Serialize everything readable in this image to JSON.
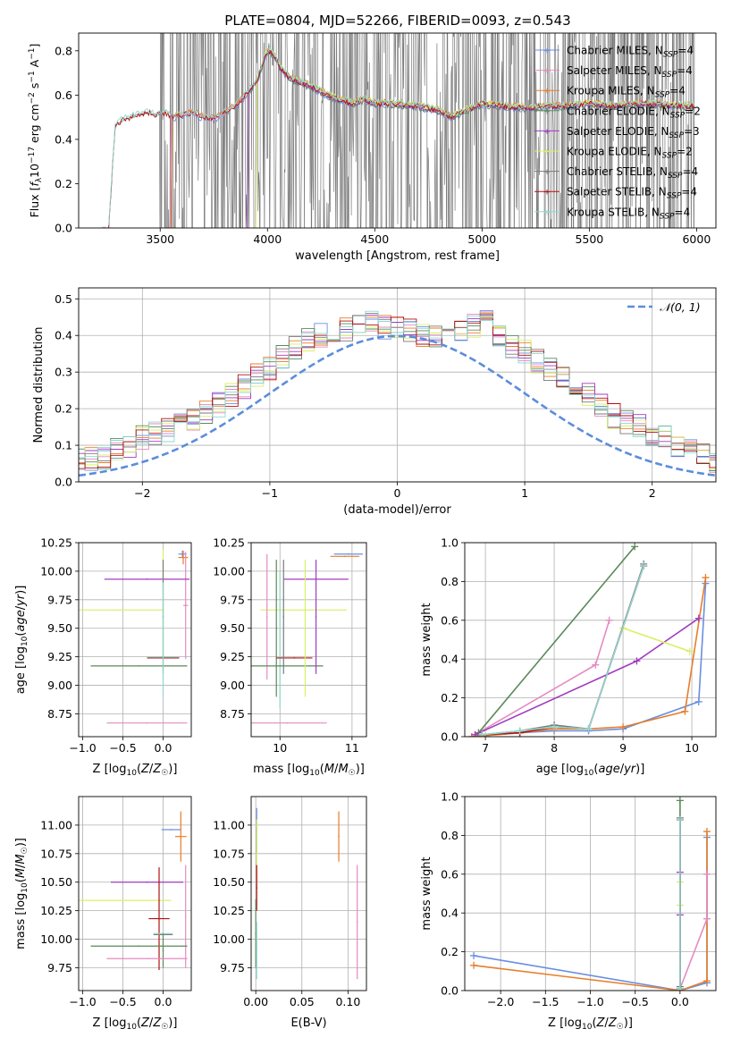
{
  "figure_title": "PLATE=0804, MJD=52266, FIBERID=0093, z=0.543",
  "colors": {
    "Chabrier MILES": "#6a8fe0",
    "Salpeter MILES": "#e58ac0",
    "Kroupa MILES": "#e87d2a",
    "Chabrier ELODIE": "#5a8a5a",
    "Salpeter ELODIE": "#a03bbf",
    "Kroupa ELODIE": "#d8f064",
    "Chabrier STELIB": "#7a7a7a",
    "Salpeter STELIB": "#b01010",
    "Kroupa STELIB": "#8ed8d0"
  },
  "chart_data": [
    {
      "id": "spectrum",
      "type": "line",
      "xlabel": "wavelength [Angstrom, rest frame]",
      "ylabel": "Flux [f_λ 10^-17 erg cm^-2 s^-1 A^-1]",
      "xlim": [
        3120,
        6090
      ],
      "ylim": [
        0,
        0.88
      ],
      "xticks": [
        3500,
        4000,
        4500,
        5000,
        5500,
        6000
      ],
      "yticks": [
        0.0,
        0.2,
        0.4,
        0.6,
        0.8
      ],
      "grid": false,
      "legend_position": "top-right",
      "legend": [
        {
          "model": "Chabrier MILES",
          "nssp": "4"
        },
        {
          "model": "Salpeter MILES",
          "nssp": "4"
        },
        {
          "model": "Kroupa MILES",
          "nssp": "4"
        },
        {
          "model": "Chabrier ELODIE",
          "nssp": "2"
        },
        {
          "model": "Salpeter ELODIE",
          "nssp": "3"
        },
        {
          "model": "Kroupa ELODIE",
          "nssp": "2"
        },
        {
          "model": "Chabrier STELIB",
          "nssp": "4"
        },
        {
          "model": "Salpeter STELIB",
          "nssp": "4"
        },
        {
          "model": "Kroupa STELIB",
          "nssp": "4"
        }
      ],
      "continuum": {
        "x": [
          3260,
          3290,
          3330,
          3400,
          3450,
          3480,
          3520,
          3560,
          3600,
          3650,
          3700,
          3750,
          3800,
          3850,
          3900,
          3950,
          3990,
          4010,
          4030,
          4060,
          4100,
          4150,
          4200,
          4300,
          4400,
          4450,
          4500,
          4600,
          4700,
          4800,
          4860,
          4900,
          5000,
          5100,
          5200,
          5300,
          5400,
          5500,
          5600,
          5700,
          5800,
          5900,
          6000
        ],
        "y": [
          0.0,
          0.46,
          0.49,
          0.51,
          0.52,
          0.51,
          0.52,
          0.5,
          0.51,
          0.52,
          0.5,
          0.49,
          0.52,
          0.55,
          0.6,
          0.66,
          0.78,
          0.8,
          0.78,
          0.72,
          0.68,
          0.66,
          0.64,
          0.59,
          0.56,
          0.58,
          0.56,
          0.56,
          0.55,
          0.53,
          0.5,
          0.52,
          0.56,
          0.55,
          0.54,
          0.55,
          0.55,
          0.56,
          0.55,
          0.56,
          0.56,
          0.55,
          0.55
        ]
      }
    },
    {
      "id": "residuals",
      "type": "histogram",
      "xlabel": "(data-model)/error",
      "ylabel": "Normed distribution",
      "xlim": [
        -2.5,
        2.5
      ],
      "ylim": [
        0,
        0.53
      ],
      "xticks": [
        -2,
        -1,
        0,
        1,
        2
      ],
      "yticks": [
        0.0,
        0.1,
        0.2,
        0.3,
        0.4,
        0.5
      ],
      "grid": true,
      "legend_position": "top-right",
      "gaussian_label": "𝒩(0, 1)",
      "bin_width": 0.1,
      "base_values": [
        0.02,
        0.02,
        0.03,
        0.03,
        0.03,
        0.04,
        0.05,
        0.06,
        0.06,
        0.07,
        0.09,
        0.1,
        0.12,
        0.13,
        0.14,
        0.16,
        0.17,
        0.19,
        0.21,
        0.24,
        0.26,
        0.29,
        0.31,
        0.34,
        0.37,
        0.39,
        0.4,
        0.41,
        0.42,
        0.43,
        0.44,
        0.42,
        0.42,
        0.41,
        0.4,
        0.4,
        0.41,
        0.42,
        0.43,
        0.44,
        0.4,
        0.37,
        0.36,
        0.33,
        0.31,
        0.28,
        0.26,
        0.24,
        0.21,
        0.18,
        0.16,
        0.15,
        0.13,
        0.12,
        0.1,
        0.09,
        0.08,
        0.06,
        0.05,
        0.04,
        0.03,
        0.03,
        0.02,
        0.02,
        0.02
      ]
    },
    {
      "id": "age_vs_Z",
      "type": "errorbar",
      "xlabel": "Z [log10(Z/Z☉)]",
      "ylabel": "age [log10(age/yr)]",
      "xlim": [
        -1.05,
        0.35
      ],
      "ylim": [
        8.55,
        10.25
      ],
      "xticks": [
        -1.0,
        -0.5,
        0.0
      ],
      "yticks": [
        8.75,
        9.0,
        9.25,
        9.5,
        9.75,
        10.0,
        10.25
      ],
      "grid": true,
      "points": [
        {
          "model": "Chabrier MILES",
          "x": 0.24,
          "xerr": 0.05,
          "y": 10.15,
          "yerr": 0.03
        },
        {
          "model": "Kroupa MILES",
          "x": 0.25,
          "xerr": 0.06,
          "y": 10.12,
          "yerr": 0.06
        },
        {
          "model": "Salpeter MILES",
          "x": 0.28,
          "xerr": 0.03,
          "y": 9.7,
          "yerr": 0.47
        },
        {
          "model": "Salpeter ELODIE",
          "x": -0.2,
          "xerr": 0.53,
          "y": 9.93,
          "yerr": 0.0
        },
        {
          "model": "Kroupa ELODIE",
          "x": 0.0,
          "xerr": 0.01,
          "y": 9.66,
          "yerr": 0.53
        },
        {
          "model": "Kroupa ELODIE",
          "x": -0.6,
          "xerr": 0.6,
          "y": 9.66,
          "yerr": 0.0
        },
        {
          "model": "Salpeter STELIB",
          "x": 0.0,
          "xerr": 0.2,
          "y": 9.24,
          "yerr": 0.0
        },
        {
          "model": "Kroupa STELIB",
          "x": 0.0,
          "xerr": 0.2,
          "y": 9.25,
          "yerr": 0.0
        },
        {
          "model": "Chabrier ELODIE",
          "x": -0.3,
          "xerr": 0.6,
          "y": 9.17,
          "yerr": 0.0
        },
        {
          "model": "Chabrier STELIB",
          "x": 0.0,
          "xerr": 0.0,
          "y": 9.6,
          "yerr": 0.5
        },
        {
          "model": "Kroupa STELIB",
          "x": 0.0,
          "xerr": 0.0,
          "y": 9.4,
          "yerr": 0.5
        },
        {
          "model": "Salpeter MILES",
          "x": -0.2,
          "xerr": 0.5,
          "y": 8.67,
          "yerr": 0.0
        }
      ]
    },
    {
      "id": "age_vs_mass",
      "type": "errorbar",
      "xlabel": "mass [log10(M/M☉)]",
      "ylabel": "",
      "xlim": [
        9.6,
        11.2
      ],
      "ylim": [
        8.55,
        10.25
      ],
      "xticks": [
        10,
        11
      ],
      "yticks": [
        8.75,
        9.0,
        9.25,
        9.5,
        9.75,
        10.0,
        10.25
      ],
      "grid": true,
      "points": [
        {
          "model": "Chabrier MILES",
          "x": 10.95,
          "xerr": 0.2,
          "y": 10.15,
          "yerr": 0.0
        },
        {
          "model": "Kroupa MILES",
          "x": 10.9,
          "xerr": 0.2,
          "y": 10.13,
          "yerr": 0.0
        },
        {
          "model": "Salpeter ELODIE",
          "x": 10.5,
          "xerr": 0.45,
          "y": 9.93,
          "yerr": 0.0
        },
        {
          "model": "Kroupa ELODIE",
          "x": 10.33,
          "xerr": 0.6,
          "y": 9.66,
          "yerr": 0.0
        },
        {
          "model": "Salpeter MILES",
          "x": 9.82,
          "xerr": 0.0,
          "y": 9.6,
          "yerr": 0.55
        },
        {
          "model": "Chabrier ELODIE",
          "x": 9.95,
          "xerr": 0.0,
          "y": 9.5,
          "yerr": 0.6
        },
        {
          "model": "Kroupa STELIB",
          "x": 10.0,
          "xerr": 0.0,
          "y": 9.4,
          "yerr": 0.6
        },
        {
          "model": "Salpeter STELIB",
          "x": 10.2,
          "xerr": 0.25,
          "y": 9.24,
          "yerr": 0.0
        },
        {
          "model": "Chabrier ELODIE",
          "x": 10.0,
          "xerr": 0.6,
          "y": 9.17,
          "yerr": 0.0
        },
        {
          "model": "Salpeter ELODIE",
          "x": 10.5,
          "xerr": 0.0,
          "y": 9.6,
          "yerr": 0.5
        },
        {
          "model": "Kroupa ELODIE",
          "x": 10.35,
          "xerr": 0.0,
          "y": 9.5,
          "yerr": 0.6
        },
        {
          "model": "Chabrier STELIB",
          "x": 10.05,
          "xerr": 0.0,
          "y": 9.6,
          "yerr": 0.5
        },
        {
          "model": "Salpeter MILES",
          "x": 10.1,
          "xerr": 0.55,
          "y": 8.67,
          "yerr": 0.0
        }
      ]
    },
    {
      "id": "mass_weight_vs_age",
      "type": "line",
      "xlabel": "age [log10(age/yr)]",
      "ylabel": "mass weight",
      "xlim": [
        6.7,
        10.35
      ],
      "ylim": [
        0,
        1.0
      ],
      "xticks": [
        7,
        8,
        9,
        10
      ],
      "yticks": [
        0.0,
        0.2,
        0.4,
        0.6,
        0.8,
        1.0
      ],
      "grid": true,
      "series": [
        {
          "model": "Chabrier MILES",
          "x": [
            6.8,
            7.5,
            8.0,
            8.5,
            9.0,
            10.1,
            10.2
          ],
          "y": [
            0.0,
            0.02,
            0.03,
            0.03,
            0.04,
            0.18,
            0.79
          ]
        },
        {
          "model": "Salpeter MILES",
          "x": [
            6.85,
            8.6,
            8.8
          ],
          "y": [
            0.01,
            0.37,
            0.6
          ]
        },
        {
          "model": "Kroupa MILES",
          "x": [
            6.8,
            7.5,
            8.0,
            8.5,
            9.0,
            9.9,
            10.2
          ],
          "y": [
            0.0,
            0.02,
            0.04,
            0.04,
            0.05,
            0.13,
            0.82
          ]
        },
        {
          "model": "Chabrier ELODIE",
          "x": [
            6.9,
            9.17
          ],
          "y": [
            0.02,
            0.98
          ]
        },
        {
          "model": "Salpeter ELODIE",
          "x": [
            6.85,
            9.2,
            10.1
          ],
          "y": [
            0.01,
            0.39,
            0.61
          ]
        },
        {
          "model": "Kroupa ELODIE",
          "x": [
            9.0,
            9.97
          ],
          "y": [
            0.56,
            0.44
          ]
        },
        {
          "model": "Chabrier STELIB",
          "x": [
            6.95,
            7.5,
            8.0,
            8.5,
            9.3
          ],
          "y": [
            0.01,
            0.03,
            0.06,
            0.04,
            0.89
          ]
        },
        {
          "model": "Salpeter STELIB",
          "x": [
            6.95,
            7.5,
            8.0,
            8.5,
            9.3
          ],
          "y": [
            0.01,
            0.02,
            0.05,
            0.04,
            0.88
          ]
        },
        {
          "model": "Kroupa STELIB",
          "x": [
            6.95,
            7.5,
            8.0,
            8.5,
            9.3
          ],
          "y": [
            0.01,
            0.03,
            0.05,
            0.04,
            0.88
          ]
        }
      ]
    },
    {
      "id": "mass_vs_Z",
      "type": "errorbar",
      "xlabel": "Z [log10(Z/Z☉)]",
      "ylabel": "mass [log10(M/M☉)]",
      "xlim": [
        -1.05,
        0.35
      ],
      "ylim": [
        9.55,
        11.25
      ],
      "xticks": [
        -1.0,
        -0.5,
        0.0
      ],
      "yticks": [
        9.75,
        10.0,
        10.25,
        10.5,
        10.75,
        11.0
      ],
      "grid": true,
      "points": [
        {
          "model": "Chabrier MILES",
          "x": 0.1,
          "xerr": 0.12,
          "y": 10.96,
          "yerr": 0.0
        },
        {
          "model": "Kroupa MILES",
          "x": 0.22,
          "xerr": 0.07,
          "y": 10.9,
          "yerr": 0.22
        },
        {
          "model": "Salpeter MILES",
          "x": 0.28,
          "xerr": 0.0,
          "y": 10.2,
          "yerr": 0.45
        },
        {
          "model": "Salpeter ELODIE",
          "x": -0.2,
          "xerr": 0.45,
          "y": 10.5,
          "yerr": 0.0
        },
        {
          "model": "Kroupa ELODIE",
          "x": -0.5,
          "xerr": 0.6,
          "y": 10.34,
          "yerr": 0.0
        },
        {
          "model": "Salpeter STELIB",
          "x": -0.05,
          "xerr": 0.13,
          "y": 10.18,
          "yerr": 0.45
        },
        {
          "model": "Kroupa STELIB",
          "x": 0.0,
          "xerr": 0.12,
          "y": 10.05,
          "yerr": 0.0
        },
        {
          "model": "Chabrier STELIB",
          "x": 0.0,
          "xerr": 0.12,
          "y": 10.04,
          "yerr": 0.0
        },
        {
          "model": "Chabrier ELODIE",
          "x": -0.3,
          "xerr": 0.6,
          "y": 9.94,
          "yerr": 0.0
        },
        {
          "model": "Chabrier ELODIE",
          "x": 0.0,
          "xerr": 0.0,
          "y": 9.9,
          "yerr": 0.15
        },
        {
          "model": "Salpeter MILES",
          "x": -0.2,
          "xerr": 0.5,
          "y": 9.83,
          "yerr": 0.0
        }
      ]
    },
    {
      "id": "mass_vs_ebv",
      "type": "errorbar",
      "xlabel": "E(B-V)",
      "ylabel": "",
      "xlim": [
        -0.005,
        0.12
      ],
      "ylim": [
        9.55,
        11.25
      ],
      "xticks": [
        0.0,
        0.05,
        0.1
      ],
      "yticks": [
        9.75,
        10.0,
        10.25,
        10.5,
        10.75,
        11.0
      ],
      "grid": true,
      "points": [
        {
          "model": "Chabrier MILES",
          "x": 0.001,
          "xerr": 0.0,
          "y": 10.95,
          "yerr": 0.2
        },
        {
          "model": "Kroupa MILES",
          "x": 0.09,
          "xerr": 0.0,
          "y": 10.9,
          "yerr": 0.22
        },
        {
          "model": "Salpeter MILES",
          "x": 0.11,
          "xerr": 0.0,
          "y": 10.15,
          "yerr": 0.5
        },
        {
          "model": "Kroupa ELODIE",
          "x": 0.001,
          "xerr": 0.0,
          "y": 10.75,
          "yerr": 0.3
        },
        {
          "model": "Salpeter STELIB",
          "x": 0.001,
          "xerr": 0.0,
          "y": 10.45,
          "yerr": 0.2
        },
        {
          "model": "Chabrier ELODIE",
          "x": 0.0,
          "xerr": 0.0,
          "y": 10.05,
          "yerr": 0.3
        },
        {
          "model": "Kroupa STELIB",
          "x": 0.001,
          "xerr": 0.0,
          "y": 9.9,
          "yerr": 0.25
        }
      ]
    },
    {
      "id": "mass_weight_vs_Z",
      "type": "line",
      "xlabel": "Z [log10(Z/Z☉)]",
      "ylabel": "mass weight",
      "xlim": [
        -2.4,
        0.4
      ],
      "ylim": [
        0,
        1.0
      ],
      "xticks": [
        -2.0,
        -1.5,
        -1.0,
        -0.5,
        0.0
      ],
      "yticks": [
        0.0,
        0.2,
        0.4,
        0.6,
        0.8,
        1.0
      ],
      "grid": true,
      "series": [
        {
          "model": "Chabrier MILES",
          "x": [
            -2.3,
            0.0,
            0.3,
            0.3
          ],
          "y": [
            0.18,
            0.0,
            0.04,
            0.79
          ]
        },
        {
          "model": "Kroupa MILES",
          "x": [
            -2.3,
            0.0,
            0.3,
            0.3
          ],
          "y": [
            0.13,
            0.0,
            0.05,
            0.82
          ]
        },
        {
          "model": "Salpeter MILES",
          "x": [
            0.0,
            0.3,
            0.3
          ],
          "y": [
            0.01,
            0.37,
            0.6
          ]
        },
        {
          "model": "Chabrier ELODIE",
          "x": [
            0.0,
            0.0
          ],
          "y": [
            0.02,
            0.98
          ]
        },
        {
          "model": "Salpeter ELODIE",
          "x": [
            0.0,
            0.0
          ],
          "y": [
            0.39,
            0.61
          ]
        },
        {
          "model": "Kroupa ELODIE",
          "x": [
            0.0,
            0.0
          ],
          "y": [
            0.44,
            0.56
          ]
        },
        {
          "model": "Chabrier STELIB",
          "x": [
            0.0,
            0.0
          ],
          "y": [
            0.01,
            0.89
          ]
        },
        {
          "model": "Salpeter STELIB",
          "x": [
            0.0,
            0.0
          ],
          "y": [
            0.01,
            0.88
          ]
        },
        {
          "model": "Kroupa STELIB",
          "x": [
            0.0,
            0.0
          ],
          "y": [
            0.01,
            0.88
          ]
        }
      ]
    }
  ]
}
